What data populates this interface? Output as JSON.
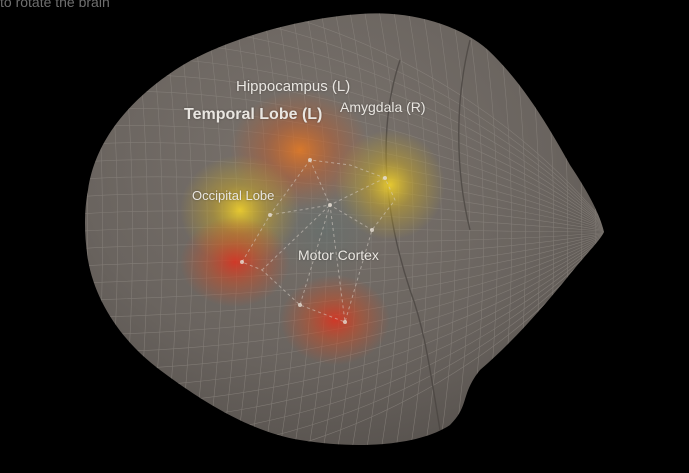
{
  "hint": "to rotate the brain",
  "labels": {
    "hippocampus": "Hippocampus (L)",
    "temporal_lobe": "Temporal Lobe (L)",
    "amygdala": "Amygdala (R)",
    "occipital_lobe": "Occipital Lobe",
    "motor_cortex": "Motor Cortex"
  },
  "colors": {
    "background": "#000000",
    "brain_surface": "#6b6560",
    "mesh_line": "#8a847e",
    "activation_hot": "#e0301e",
    "activation_warm": "#f0c020",
    "connection": "#d8d0c8"
  },
  "icons": {
    "viewer": "brain-3d-mesh"
  }
}
